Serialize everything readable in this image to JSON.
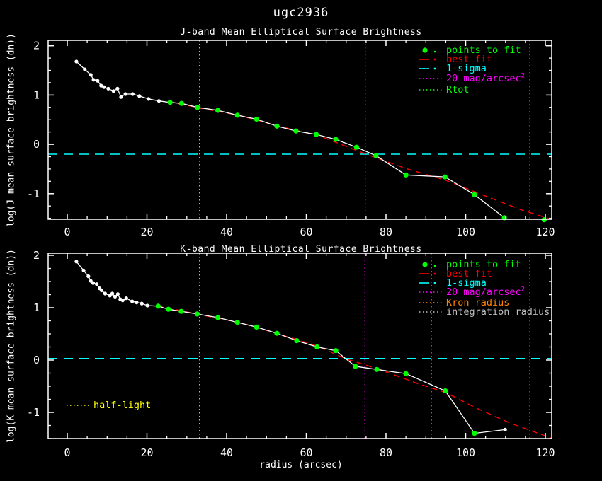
{
  "title": "ugc2936",
  "colors": {
    "background": "#000000",
    "foreground": "#ffffff",
    "points_to_fit": "#00ff00",
    "best_fit": "#ff0000",
    "one_sigma": "#00ffff",
    "mag20_per_arcsec2": "#ff00ff",
    "rtot": "#00ff00",
    "kron_radius": "#ff8000",
    "integration_radius": "#bebebe",
    "half_light": "#ffff00"
  },
  "chart_data": [
    {
      "type": "line",
      "band_label": "J",
      "title": "J-band Mean Elliptical Surface Brightness",
      "xlabel": "",
      "ylabel": "log(J mean surface brightness (dn))",
      "xlim": [
        -4.8,
        121.6
      ],
      "ylim": [
        -1.52,
        2.11
      ],
      "xticks": [
        0,
        20,
        40,
        60,
        80,
        100,
        120
      ],
      "yticks": [
        -1,
        0,
        1,
        2
      ],
      "minor_tick_x": 5,
      "minor_tick_y": 0.25,
      "grid": false,
      "legend_position": "upper right",
      "profile_color": "#ffffff",
      "fit_marker_color": "#00ff00",
      "best_fit_color": "#ff0000",
      "profile_line": [
        [
          2.3,
          1.68
        ],
        [
          4.4,
          1.52
        ],
        [
          5.9,
          1.41
        ],
        [
          6.6,
          1.31
        ],
        [
          7.6,
          1.29
        ],
        [
          8.5,
          1.19
        ],
        [
          9.2,
          1.16
        ],
        [
          10.3,
          1.13
        ],
        [
          11.6,
          1.08
        ],
        [
          12.6,
          1.13
        ],
        [
          13.5,
          0.96
        ],
        [
          14.6,
          1.02
        ],
        [
          16.4,
          1.02
        ],
        [
          18.1,
          0.98
        ],
        [
          20.4,
          0.92
        ],
        [
          23.0,
          0.88
        ],
        [
          25.8,
          0.85
        ],
        [
          28.7,
          0.83
        ],
        [
          32.7,
          0.75
        ],
        [
          37.8,
          0.69
        ],
        [
          42.7,
          0.59
        ],
        [
          47.5,
          0.51
        ],
        [
          52.6,
          0.37
        ],
        [
          57.4,
          0.27
        ],
        [
          62.5,
          0.2
        ],
        [
          67.4,
          0.1
        ],
        [
          72.6,
          -0.06
        ],
        [
          77.5,
          -0.23
        ],
        [
          85.0,
          -0.62
        ],
        [
          94.8,
          -0.66
        ],
        [
          102.2,
          -1.02
        ],
        [
          109.7,
          -1.49
        ]
      ],
      "white_points": [
        [
          2.3,
          1.68
        ],
        [
          4.4,
          1.52
        ],
        [
          5.9,
          1.41
        ],
        [
          6.6,
          1.31
        ],
        [
          7.6,
          1.29
        ],
        [
          8.5,
          1.19
        ],
        [
          9.2,
          1.16
        ],
        [
          10.3,
          1.13
        ],
        [
          11.6,
          1.08
        ],
        [
          12.6,
          1.13
        ],
        [
          13.5,
          0.96
        ],
        [
          14.6,
          1.02
        ],
        [
          16.4,
          1.02
        ],
        [
          18.1,
          0.98
        ],
        [
          20.4,
          0.92
        ],
        [
          23.0,
          0.88
        ]
      ],
      "fit_points": [
        [
          25.8,
          0.85
        ],
        [
          28.7,
          0.83
        ],
        [
          32.7,
          0.75
        ],
        [
          37.8,
          0.69
        ],
        [
          42.7,
          0.59
        ],
        [
          47.5,
          0.51
        ],
        [
          52.6,
          0.37
        ],
        [
          57.4,
          0.27
        ],
        [
          62.5,
          0.2
        ],
        [
          67.4,
          0.1
        ],
        [
          72.6,
          -0.06
        ],
        [
          77.5,
          -0.23
        ],
        [
          85.0,
          -0.62
        ],
        [
          94.8,
          -0.66
        ],
        [
          102.2,
          -1.02
        ],
        [
          109.7,
          -1.49
        ],
        [
          119.7,
          -1.53
        ]
      ],
      "best_fit_line": [
        [
          25.5,
          0.87
        ],
        [
          33,
          0.74
        ],
        [
          43,
          0.59
        ],
        [
          53,
          0.37
        ],
        [
          63,
          0.18
        ],
        [
          75,
          -0.2
        ],
        [
          85,
          -0.49
        ],
        [
          95,
          -0.73
        ],
        [
          105,
          -1.05
        ],
        [
          114,
          -1.33
        ],
        [
          121.5,
          -1.52
        ]
      ],
      "hlines": [
        {
          "label": "1-sigma",
          "y": -0.2,
          "color": "#00ffff"
        }
      ],
      "vlines": [
        {
          "label": "half-light",
          "x": 33.2,
          "color": "#ffff00"
        },
        {
          "label": "20 mag/arcsec^2",
          "x": 74.8,
          "color": "#ff00ff"
        },
        {
          "label": "Rtot",
          "x": 116.1,
          "color": "#00ff00"
        }
      ],
      "legend": [
        {
          "label": "points to fit",
          "color": "#00ff00",
          "swatch": "dot"
        },
        {
          "label": "best fit",
          "color": "#ff0000",
          "swatch": "dash"
        },
        {
          "label": "1-sigma",
          "color": "#00ffff",
          "swatch": "dash"
        },
        {
          "label": "20 mag/arcsec",
          "sup": "2",
          "color": "#ff00ff",
          "swatch": "dots"
        },
        {
          "label": "Rtot",
          "color": "#00ff00",
          "swatch": "dots"
        }
      ]
    },
    {
      "type": "line",
      "band_label": "K",
      "title": "K-band Mean Elliptical Surface Brightness",
      "xlabel": "radius (arcsec)",
      "ylabel": "log(K mean surface brightness (dn))",
      "xlim": [
        -4.8,
        121.6
      ],
      "ylim": [
        -1.5,
        2.04
      ],
      "xticks": [
        0,
        20,
        40,
        60,
        80,
        100,
        120
      ],
      "yticks": [
        -1,
        0,
        1,
        2
      ],
      "minor_tick_x": 5,
      "minor_tick_y": 0.25,
      "grid": false,
      "legend_position": "upper right",
      "profile_color": "#ffffff",
      "fit_marker_color": "#00ff00",
      "best_fit_color": "#ff0000",
      "profile_line": [
        [
          2.3,
          1.88
        ],
        [
          4.1,
          1.71
        ],
        [
          5.3,
          1.6
        ],
        [
          5.9,
          1.51
        ],
        [
          6.5,
          1.47
        ],
        [
          7.4,
          1.45
        ],
        [
          8.1,
          1.37
        ],
        [
          8.6,
          1.33
        ],
        [
          9.5,
          1.27
        ],
        [
          10.7,
          1.23
        ],
        [
          11.3,
          1.27
        ],
        [
          12.0,
          1.21
        ],
        [
          12.7,
          1.26
        ],
        [
          13.3,
          1.16
        ],
        [
          13.9,
          1.14
        ],
        [
          14.8,
          1.18
        ],
        [
          16.3,
          1.12
        ],
        [
          17.4,
          1.1
        ],
        [
          18.7,
          1.08
        ],
        [
          20.1,
          1.04
        ],
        [
          22.8,
          1.03
        ],
        [
          25.4,
          0.97
        ],
        [
          28.6,
          0.93
        ],
        [
          32.6,
          0.88
        ],
        [
          37.8,
          0.81
        ],
        [
          42.7,
          0.72
        ],
        [
          47.5,
          0.63
        ],
        [
          52.6,
          0.51
        ],
        [
          57.6,
          0.37
        ],
        [
          62.7,
          0.25
        ],
        [
          67.4,
          0.18
        ],
        [
          72.3,
          -0.12
        ],
        [
          77.7,
          -0.18
        ],
        [
          85.0,
          -0.26
        ],
        [
          94.9,
          -0.59
        ],
        [
          102.2,
          -1.4
        ],
        [
          109.9,
          -1.33
        ]
      ],
      "white_points": [
        [
          2.3,
          1.88
        ],
        [
          4.1,
          1.71
        ],
        [
          5.3,
          1.6
        ],
        [
          5.9,
          1.51
        ],
        [
          6.5,
          1.47
        ],
        [
          7.4,
          1.45
        ],
        [
          8.1,
          1.37
        ],
        [
          8.6,
          1.33
        ],
        [
          9.5,
          1.27
        ],
        [
          10.7,
          1.23
        ],
        [
          11.3,
          1.27
        ],
        [
          12.0,
          1.21
        ],
        [
          12.7,
          1.26
        ],
        [
          13.3,
          1.16
        ],
        [
          13.9,
          1.14
        ],
        [
          14.8,
          1.18
        ],
        [
          16.3,
          1.12
        ],
        [
          17.4,
          1.1
        ],
        [
          18.7,
          1.08
        ],
        [
          20.1,
          1.04
        ],
        [
          109.9,
          -1.33
        ]
      ],
      "fit_points": [
        [
          22.8,
          1.03
        ],
        [
          25.4,
          0.97
        ],
        [
          28.6,
          0.93
        ],
        [
          32.6,
          0.88
        ],
        [
          37.8,
          0.81
        ],
        [
          42.7,
          0.72
        ],
        [
          47.5,
          0.63
        ],
        [
          52.6,
          0.51
        ],
        [
          57.6,
          0.37
        ],
        [
          62.7,
          0.25
        ],
        [
          67.4,
          0.18
        ],
        [
          72.3,
          -0.12
        ],
        [
          77.7,
          -0.18
        ],
        [
          85.0,
          -0.26
        ],
        [
          94.9,
          -0.59
        ],
        [
          102.2,
          -1.4
        ]
      ],
      "best_fit_line": [
        [
          22.5,
          1.04
        ],
        [
          33,
          0.87
        ],
        [
          43,
          0.72
        ],
        [
          53,
          0.5
        ],
        [
          63,
          0.26
        ],
        [
          70,
          0.02
        ],
        [
          78,
          -0.17
        ],
        [
          88,
          -0.45
        ],
        [
          95,
          -0.62
        ],
        [
          103,
          -0.93
        ],
        [
          111,
          -1.2
        ],
        [
          121.5,
          -1.49
        ]
      ],
      "hlines": [
        {
          "label": "1-sigma",
          "y": 0.03,
          "color": "#00ffff"
        }
      ],
      "vlines": [
        {
          "label": "half-light",
          "x": 33.2,
          "color": "#ffff00"
        },
        {
          "label": "20 mag/arcsec^2",
          "x": 74.7,
          "color": "#ff00ff"
        },
        {
          "label": "Kron radius",
          "x": 91.4,
          "color": "#ff8000"
        },
        {
          "label": "Rtot",
          "x": 116.1,
          "color": "#00ff00"
        }
      ],
      "legend": [
        {
          "label": "points to fit",
          "color": "#00ff00",
          "swatch": "dot"
        },
        {
          "label": "best fit",
          "color": "#ff0000",
          "swatch": "dash"
        },
        {
          "label": "1-sigma",
          "color": "#00ffff",
          "swatch": "dash"
        },
        {
          "label": "20 mag/arcsec",
          "sup": "2",
          "color": "#ff00ff",
          "swatch": "dots"
        },
        {
          "label": "Kron radius",
          "color": "#ff8000",
          "swatch": "dots"
        },
        {
          "label": "integration radius",
          "color": "#bebebe",
          "swatch": "dots"
        }
      ],
      "extra_legend": {
        "label": "half-light",
        "color": "#ffff00",
        "swatch": "dots"
      }
    }
  ]
}
